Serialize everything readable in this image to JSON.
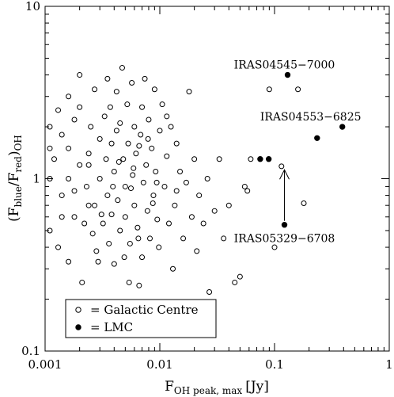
{
  "chart_data": {
    "type": "scatter",
    "x_scale": "log",
    "y_scale": "log",
    "xlim": [
      0.001,
      1
    ],
    "ylim": [
      0.1,
      10
    ],
    "grid": false,
    "legend_position": "bottom-left",
    "xlabel": "F_OH peak, max [Jy]",
    "ylabel": "(F_blue/F_red)_OH",
    "x_ticks": [
      "0.001",
      "0.01",
      "0.1",
      "1"
    ],
    "y_ticks": [
      "0.1",
      "1",
      "10"
    ],
    "series": [
      {
        "name": "LMC",
        "marker": "filled-circle",
        "points": [
          {
            "x": 0.13,
            "y": 4.0
          },
          {
            "x": 0.235,
            "y": 1.72
          },
          {
            "x": 0.39,
            "y": 2.0
          },
          {
            "x": 0.075,
            "y": 1.3
          },
          {
            "x": 0.089,
            "y": 1.3
          },
          {
            "x": 0.122,
            "y": 0.54
          }
        ]
      },
      {
        "name": "Galactic Centre",
        "marker": "open-circle",
        "points": [
          {
            "x": 0.0011,
            "y": 2.0
          },
          {
            "x": 0.0011,
            "y": 1.5
          },
          {
            "x": 0.0011,
            "y": 1.0
          },
          {
            "x": 0.0011,
            "y": 0.5
          },
          {
            "x": 0.0012,
            "y": 1.3
          },
          {
            "x": 0.0013,
            "y": 2.5
          },
          {
            "x": 0.0013,
            "y": 0.4
          },
          {
            "x": 0.0014,
            "y": 1.8
          },
          {
            "x": 0.0014,
            "y": 0.8
          },
          {
            "x": 0.0014,
            "y": 0.6
          },
          {
            "x": 0.0016,
            "y": 3.0
          },
          {
            "x": 0.0016,
            "y": 1.5
          },
          {
            "x": 0.0016,
            "y": 1.0
          },
          {
            "x": 0.0016,
            "y": 0.33
          },
          {
            "x": 0.0018,
            "y": 2.2
          },
          {
            "x": 0.0018,
            "y": 0.85
          },
          {
            "x": 0.0018,
            "y": 0.6
          },
          {
            "x": 0.002,
            "y": 4.0
          },
          {
            "x": 0.002,
            "y": 2.6
          },
          {
            "x": 0.002,
            "y": 1.2
          },
          {
            "x": 0.0021,
            "y": 0.25
          },
          {
            "x": 0.0022,
            "y": 0.55
          },
          {
            "x": 0.0023,
            "y": 0.9
          },
          {
            "x": 0.0024,
            "y": 1.4
          },
          {
            "x": 0.0025,
            "y": 2.0
          },
          {
            "x": 0.0026,
            "y": 0.48
          },
          {
            "x": 0.0027,
            "y": 3.3
          },
          {
            "x": 0.0027,
            "y": 0.7
          },
          {
            "x": 0.0028,
            "y": 0.38
          },
          {
            "x": 0.003,
            "y": 1.7
          },
          {
            "x": 0.003,
            "y": 1.0
          },
          {
            "x": 0.0032,
            "y": 0.55
          },
          {
            "x": 0.0033,
            "y": 2.3
          },
          {
            "x": 0.0034,
            "y": 1.3
          },
          {
            "x": 0.0035,
            "y": 3.8
          },
          {
            "x": 0.0035,
            "y": 0.8
          },
          {
            "x": 0.0036,
            "y": 0.42
          },
          {
            "x": 0.0037,
            "y": 2.6
          },
          {
            "x": 0.0038,
            "y": 1.6
          },
          {
            "x": 0.0038,
            "y": 0.62
          },
          {
            "x": 0.004,
            "y": 1.1
          },
          {
            "x": 0.004,
            "y": 0.32
          },
          {
            "x": 0.0042,
            "y": 3.2
          },
          {
            "x": 0.0042,
            "y": 1.9
          },
          {
            "x": 0.0043,
            "y": 0.75
          },
          {
            "x": 0.0045,
            "y": 2.1
          },
          {
            "x": 0.0045,
            "y": 0.5
          },
          {
            "x": 0.0047,
            "y": 4.4
          },
          {
            "x": 0.0048,
            "y": 1.3
          },
          {
            "x": 0.005,
            "y": 0.9
          },
          {
            "x": 0.005,
            "y": 0.6
          },
          {
            "x": 0.0052,
            "y": 2.7
          },
          {
            "x": 0.0053,
            "y": 1.6
          },
          {
            "x": 0.0054,
            "y": 0.25
          },
          {
            "x": 0.0055,
            "y": 0.42
          },
          {
            "x": 0.0057,
            "y": 3.6
          },
          {
            "x": 0.0058,
            "y": 1.05
          },
          {
            "x": 0.006,
            "y": 2.0
          },
          {
            "x": 0.006,
            "y": 0.7
          },
          {
            "x": 0.0062,
            "y": 1.4
          },
          {
            "x": 0.0064,
            "y": 0.52
          },
          {
            "x": 0.0066,
            "y": 0.24
          },
          {
            "x": 0.0068,
            "y": 1.8
          },
          {
            "x": 0.007,
            "y": 2.6
          },
          {
            "x": 0.007,
            "y": 0.35
          },
          {
            "x": 0.0072,
            "y": 0.95
          },
          {
            "x": 0.0074,
            "y": 3.8
          },
          {
            "x": 0.0076,
            "y": 1.2
          },
          {
            "x": 0.0078,
            "y": 0.65
          },
          {
            "x": 0.008,
            "y": 2.2
          },
          {
            "x": 0.0082,
            "y": 0.45
          },
          {
            "x": 0.0085,
            "y": 1.5
          },
          {
            "x": 0.0088,
            "y": 0.8
          },
          {
            "x": 0.009,
            "y": 3.3
          },
          {
            "x": 0.0092,
            "y": 1.1
          },
          {
            "x": 0.0095,
            "y": 0.58
          },
          {
            "x": 0.0098,
            "y": 0.4
          },
          {
            "x": 0.01,
            "y": 1.9
          },
          {
            "x": 0.0105,
            "y": 2.7
          },
          {
            "x": 0.011,
            "y": 0.9
          },
          {
            "x": 0.0115,
            "y": 1.35
          },
          {
            "x": 0.012,
            "y": 0.55
          },
          {
            "x": 0.0125,
            "y": 2.0
          },
          {
            "x": 0.013,
            "y": 0.3
          },
          {
            "x": 0.0135,
            "y": 0.7
          },
          {
            "x": 0.014,
            "y": 1.6
          },
          {
            "x": 0.015,
            "y": 1.1
          },
          {
            "x": 0.016,
            "y": 0.45
          },
          {
            "x": 0.017,
            "y": 0.95
          },
          {
            "x": 0.018,
            "y": 3.2
          },
          {
            "x": 0.019,
            "y": 0.6
          },
          {
            "x": 0.02,
            "y": 1.3
          },
          {
            "x": 0.021,
            "y": 0.38
          },
          {
            "x": 0.022,
            "y": 0.8
          },
          {
            "x": 0.024,
            "y": 0.55
          },
          {
            "x": 0.026,
            "y": 1.0
          },
          {
            "x": 0.027,
            "y": 0.22
          },
          {
            "x": 0.03,
            "y": 0.65
          },
          {
            "x": 0.033,
            "y": 1.3
          },
          {
            "x": 0.036,
            "y": 0.45
          },
          {
            "x": 0.04,
            "y": 0.7
          },
          {
            "x": 0.045,
            "y": 0.25
          },
          {
            "x": 0.05,
            "y": 0.27
          },
          {
            "x": 0.055,
            "y": 0.9
          },
          {
            "x": 0.058,
            "y": 0.85
          },
          {
            "x": 0.062,
            "y": 1.3
          },
          {
            "x": 0.09,
            "y": 3.3
          },
          {
            "x": 0.1,
            "y": 0.4
          },
          {
            "x": 0.115,
            "y": 1.18
          },
          {
            "x": 0.16,
            "y": 3.3
          },
          {
            "x": 0.18,
            "y": 0.72
          },
          {
            "x": 0.0056,
            "y": 0.88
          },
          {
            "x": 0.0031,
            "y": 0.62
          },
          {
            "x": 0.0044,
            "y": 1.25
          },
          {
            "x": 0.0066,
            "y": 1.55
          },
          {
            "x": 0.0087,
            "y": 0.72
          },
          {
            "x": 0.0115,
            "y": 2.3
          },
          {
            "x": 0.014,
            "y": 0.85
          },
          {
            "x": 0.0065,
            "y": 0.45
          },
          {
            "x": 0.0049,
            "y": 0.35
          },
          {
            "x": 0.0024,
            "y": 0.7
          },
          {
            "x": 0.0029,
            "y": 0.33
          },
          {
            "x": 0.0039,
            "y": 0.9
          },
          {
            "x": 0.0059,
            "y": 1.15
          },
          {
            "x": 0.0079,
            "y": 1.7
          },
          {
            "x": 0.0094,
            "y": 0.95
          },
          {
            "x": 0.0024,
            "y": 1.2
          }
        ]
      }
    ],
    "annotations": [
      {
        "text": "IRAS04545−7000",
        "x": 0.13,
        "y": 4.0
      },
      {
        "text": "IRAS04553−6825",
        "x": 0.39,
        "y": 2.0
      },
      {
        "text": "IRAS05329−6708",
        "x": 0.122,
        "y": 0.54
      }
    ],
    "arrow": {
      "from": {
        "x": 0.122,
        "y": 0.54
      },
      "to": {
        "x": 0.122,
        "y": 1.2
      }
    }
  }
}
